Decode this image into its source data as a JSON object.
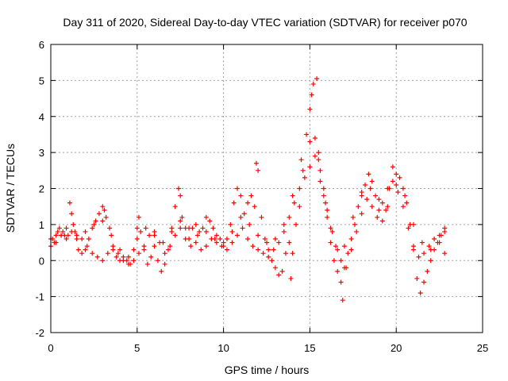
{
  "chart_data": {
    "type": "scatter",
    "title": "Day 311 of 2020, Sidereal Day-to-day VTEC variation (SDTVAR) for receiver p070",
    "xlabel": "GPS time / hours",
    "ylabel": "SDTVAR / TECUs",
    "xlim": [
      0,
      25
    ],
    "ylim": [
      -2,
      6
    ],
    "xticks": [
      0,
      5,
      10,
      15,
      20,
      25
    ],
    "yticks": [
      -2,
      -1,
      0,
      1,
      2,
      3,
      4,
      5,
      6
    ],
    "grid": true,
    "marker": "+",
    "series": [
      {
        "name": "SDTVAR",
        "color": "#ff0000",
        "points": [
          [
            0.0,
            0.4
          ],
          [
            0.1,
            0.6
          ],
          [
            0.2,
            0.5
          ],
          [
            0.3,
            0.7
          ],
          [
            0.4,
            0.8
          ],
          [
            0.5,
            0.9
          ],
          [
            0.6,
            0.7
          ],
          [
            0.7,
            0.8
          ],
          [
            0.8,
            0.7
          ],
          [
            0.9,
            0.6
          ],
          [
            1.0,
            0.7
          ],
          [
            1.1,
            1.6
          ],
          [
            1.2,
            1.3
          ],
          [
            1.3,
            1.0
          ],
          [
            1.4,
            0.8
          ],
          [
            1.5,
            0.6
          ],
          [
            1.6,
            0.3
          ],
          [
            1.8,
            0.2
          ],
          [
            2.0,
            0.3
          ],
          [
            2.2,
            0.6
          ],
          [
            2.4,
            0.9
          ],
          [
            2.6,
            1.1
          ],
          [
            2.8,
            1.3
          ],
          [
            3.0,
            1.5
          ],
          [
            3.1,
            1.4
          ],
          [
            3.2,
            1.2
          ],
          [
            3.4,
            0.9
          ],
          [
            3.6,
            0.4
          ],
          [
            3.8,
            0.1
          ],
          [
            4.0,
            0.0
          ],
          [
            4.2,
            0.1
          ],
          [
            4.4,
            0.0
          ],
          [
            4.6,
            -0.1
          ],
          [
            4.8,
            0.3
          ],
          [
            5.0,
            0.9
          ],
          [
            5.1,
            1.2
          ],
          [
            5.2,
            0.8
          ],
          [
            5.4,
            0.3
          ],
          [
            5.6,
            -0.1
          ],
          [
            5.8,
            0.1
          ],
          [
            6.0,
            0.4
          ],
          [
            6.2,
            0.0
          ],
          [
            6.4,
            -0.3
          ],
          [
            6.6,
            -0.1
          ],
          [
            6.8,
            0.3
          ],
          [
            7.0,
            0.8
          ],
          [
            7.2,
            1.5
          ],
          [
            7.4,
            2.0
          ],
          [
            7.5,
            1.8
          ],
          [
            7.6,
            1.2
          ],
          [
            7.8,
            0.9
          ],
          [
            8.0,
            0.6
          ],
          [
            8.2,
            0.9
          ],
          [
            8.4,
            1.0
          ],
          [
            8.6,
            0.8
          ],
          [
            8.8,
            0.9
          ],
          [
            9.0,
            1.2
          ],
          [
            9.2,
            1.1
          ],
          [
            9.4,
            0.9
          ],
          [
            9.6,
            0.7
          ],
          [
            9.8,
            0.6
          ],
          [
            10.0,
            0.5
          ],
          [
            10.2,
            0.6
          ],
          [
            10.4,
            1.0
          ],
          [
            10.6,
            1.6
          ],
          [
            10.8,
            2.0
          ],
          [
            11.0,
            1.8
          ],
          [
            11.2,
            1.3
          ],
          [
            11.4,
            1.6
          ],
          [
            11.6,
            1.8
          ],
          [
            11.8,
            1.5
          ],
          [
            11.9,
            2.7
          ],
          [
            12.0,
            2.5
          ],
          [
            12.2,
            1.2
          ],
          [
            12.4,
            0.6
          ],
          [
            12.6,
            0.3
          ],
          [
            12.8,
            0.0
          ],
          [
            13.0,
            -0.2
          ],
          [
            13.2,
            -0.4
          ],
          [
            13.4,
            -0.3
          ],
          [
            13.6,
            0.2
          ],
          [
            13.8,
            0.5
          ],
          [
            13.9,
            -0.5
          ],
          [
            14.0,
            0.2
          ],
          [
            14.2,
            1.0
          ],
          [
            14.4,
            1.5
          ],
          [
            14.6,
            2.5
          ],
          [
            14.8,
            3.5
          ],
          [
            15.0,
            4.2
          ],
          [
            15.1,
            4.6
          ],
          [
            15.2,
            4.9
          ],
          [
            15.4,
            5.05
          ],
          [
            15.5,
            3.0
          ],
          [
            15.6,
            2.5
          ],
          [
            15.8,
            1.8
          ],
          [
            16.0,
            1.2
          ],
          [
            16.2,
            0.5
          ],
          [
            16.4,
            0.0
          ],
          [
            16.6,
            -0.3
          ],
          [
            16.8,
            -0.6
          ],
          [
            16.9,
            -1.1
          ],
          [
            17.0,
            -0.2
          ],
          [
            17.2,
            0.2
          ],
          [
            17.4,
            0.6
          ],
          [
            17.6,
            1.0
          ],
          [
            17.8,
            1.5
          ],
          [
            18.0,
            1.9
          ],
          [
            18.2,
            2.1
          ],
          [
            18.4,
            2.4
          ],
          [
            18.6,
            2.2
          ],
          [
            18.8,
            1.8
          ],
          [
            19.0,
            1.4
          ],
          [
            19.2,
            1.1
          ],
          [
            19.4,
            1.4
          ],
          [
            19.6,
            2.0
          ],
          [
            19.8,
            2.6
          ],
          [
            20.0,
            2.4
          ],
          [
            20.2,
            2.3
          ],
          [
            20.4,
            2.0
          ],
          [
            20.6,
            1.6
          ],
          [
            20.8,
            1.0
          ],
          [
            21.0,
            0.3
          ],
          [
            21.2,
            -0.5
          ],
          [
            21.4,
            -0.9
          ],
          [
            21.6,
            -0.6
          ],
          [
            21.8,
            -0.3
          ],
          [
            22.0,
            0.0
          ],
          [
            22.2,
            0.3
          ],
          [
            22.4,
            0.5
          ],
          [
            22.6,
            0.7
          ],
          [
            22.8,
            0.8
          ],
          [
            0.0,
            0.6
          ],
          [
            0.3,
            0.5
          ],
          [
            0.6,
            0.7
          ],
          [
            0.9,
            0.9
          ],
          [
            1.2,
            0.8
          ],
          [
            1.5,
            0.7
          ],
          [
            1.8,
            0.6
          ],
          [
            2.1,
            0.4
          ],
          [
            2.4,
            0.2
          ],
          [
            2.7,
            0.1
          ],
          [
            3.0,
            0.0
          ],
          [
            3.3,
            0.2
          ],
          [
            3.6,
            0.3
          ],
          [
            3.9,
            0.2
          ],
          [
            4.2,
            0.0
          ],
          [
            4.5,
            -0.1
          ],
          [
            4.8,
            0.0
          ],
          [
            5.1,
            0.2
          ],
          [
            5.4,
            0.4
          ],
          [
            5.7,
            0.7
          ],
          [
            6.0,
            0.8
          ],
          [
            6.3,
            0.5
          ],
          [
            6.6,
            0.2
          ],
          [
            6.9,
            0.4
          ],
          [
            7.2,
            0.7
          ],
          [
            7.5,
            0.9
          ],
          [
            7.8,
            0.6
          ],
          [
            8.1,
            0.4
          ],
          [
            8.4,
            0.5
          ],
          [
            8.7,
            0.3
          ],
          [
            9.0,
            0.4
          ],
          [
            9.3,
            0.6
          ],
          [
            9.6,
            0.5
          ],
          [
            9.9,
            0.4
          ],
          [
            10.2,
            0.3
          ],
          [
            10.5,
            0.5
          ],
          [
            10.8,
            0.7
          ],
          [
            11.1,
            0.9
          ],
          [
            11.4,
            0.6
          ],
          [
            11.7,
            0.4
          ],
          [
            12.0,
            0.3
          ],
          [
            12.3,
            0.2
          ],
          [
            12.6,
            0.1
          ],
          [
            12.9,
            0.3
          ],
          [
            13.2,
            0.5
          ],
          [
            13.5,
            0.8
          ],
          [
            13.8,
            1.2
          ],
          [
            14.1,
            1.6
          ],
          [
            14.4,
            2.0
          ],
          [
            14.7,
            2.3
          ],
          [
            15.0,
            2.6
          ],
          [
            15.3,
            2.9
          ],
          [
            15.6,
            2.2
          ],
          [
            15.9,
            1.6
          ],
          [
            16.2,
            0.9
          ],
          [
            16.5,
            0.4
          ],
          [
            16.8,
            0.0
          ],
          [
            17.1,
            -0.2
          ],
          [
            17.4,
            0.3
          ],
          [
            17.7,
            0.8
          ],
          [
            18.0,
            1.3
          ],
          [
            18.3,
            1.7
          ],
          [
            18.6,
            1.5
          ],
          [
            18.9,
            1.2
          ],
          [
            19.2,
            1.6
          ],
          [
            19.5,
            2.0
          ],
          [
            19.8,
            2.2
          ],
          [
            20.1,
            1.9
          ],
          [
            20.4,
            1.5
          ],
          [
            20.7,
            0.9
          ],
          [
            21.0,
            0.4
          ],
          [
            21.3,
            0.1
          ],
          [
            21.6,
            0.2
          ],
          [
            21.9,
            0.4
          ],
          [
            22.2,
            0.6
          ],
          [
            22.5,
            0.5
          ],
          [
            22.8,
            0.2
          ],
          [
            2.0,
            0.8
          ],
          [
            2.5,
            1.0
          ],
          [
            3.0,
            1.1
          ],
          [
            3.5,
            0.7
          ],
          [
            4.0,
            0.3
          ],
          [
            4.5,
            0.1
          ],
          [
            5.0,
            0.6
          ],
          [
            5.5,
            0.9
          ],
          [
            6.0,
            0.7
          ],
          [
            6.5,
            0.5
          ],
          [
            7.0,
            0.9
          ],
          [
            7.5,
            1.1
          ],
          [
            8.0,
            0.9
          ],
          [
            8.5,
            0.7
          ],
          [
            9.0,
            0.8
          ],
          [
            9.5,
            0.6
          ],
          [
            10.0,
            0.4
          ],
          [
            10.5,
            0.8
          ],
          [
            11.0,
            1.2
          ],
          [
            11.5,
            1.0
          ],
          [
            12.0,
            0.7
          ],
          [
            12.5,
            0.5
          ],
          [
            13.0,
            0.6
          ],
          [
            13.5,
            1.0
          ],
          [
            14.0,
            1.8
          ],
          [
            14.5,
            2.8
          ],
          [
            15.0,
            3.3
          ],
          [
            15.3,
            3.4
          ],
          [
            15.5,
            2.8
          ],
          [
            15.8,
            2.0
          ],
          [
            16.0,
            1.4
          ],
          [
            16.3,
            0.8
          ],
          [
            16.6,
            0.3
          ],
          [
            17.0,
            0.4
          ],
          [
            17.5,
            1.2
          ],
          [
            18.0,
            1.8
          ],
          [
            18.5,
            2.0
          ],
          [
            19.0,
            1.7
          ],
          [
            19.5,
            1.5
          ],
          [
            20.0,
            2.1
          ],
          [
            20.5,
            1.8
          ],
          [
            21.0,
            1.0
          ],
          [
            21.5,
            0.5
          ],
          [
            22.0,
            0.3
          ],
          [
            22.5,
            0.7
          ],
          [
            22.8,
            0.9
          ]
        ]
      }
    ]
  }
}
